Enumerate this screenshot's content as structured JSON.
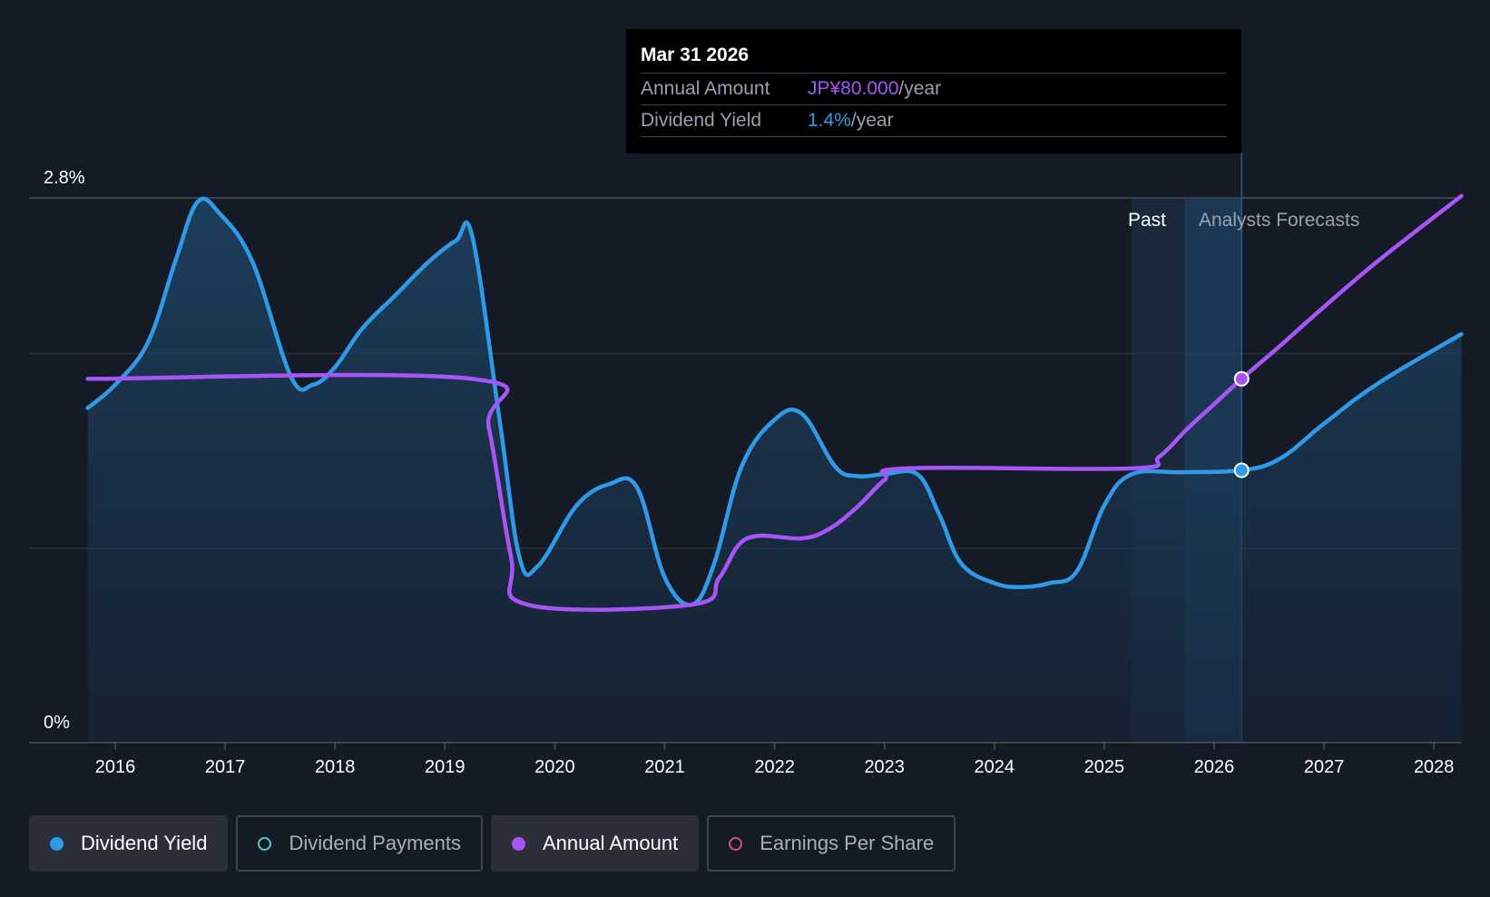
{
  "tooltip": {
    "date": "Mar 31 2026",
    "amount_label": "Annual Amount",
    "amount_value": "JP¥80.000",
    "amount_unit": "/year",
    "yield_label": "Dividend Yield",
    "yield_value": "1.4%",
    "yield_unit": "/year"
  },
  "regions": {
    "past": "Past",
    "forecast": "Analysts Forecasts"
  },
  "legend": [
    {
      "label": "Dividend Yield",
      "color": "#2f9be8",
      "active": true,
      "filled": true
    },
    {
      "label": "Dividend Payments",
      "color": "#5ec7c0",
      "active": false,
      "filled": false
    },
    {
      "label": "Annual Amount",
      "color": "#a855f7",
      "active": true,
      "filled": true
    },
    {
      "label": "Earnings Per Share",
      "color": "#d64d7f",
      "active": false,
      "filled": false
    }
  ],
  "chart_data": {
    "type": "line",
    "x_ticks": [
      "2016",
      "2017",
      "2018",
      "2019",
      "2020",
      "2021",
      "2022",
      "2023",
      "2024",
      "2025",
      "2026",
      "2027",
      "2028"
    ],
    "y_ticks": [
      "0%",
      "2.8%"
    ],
    "ylim": [
      0,
      2.8
    ],
    "xlim": [
      2015.75,
      2028.25
    ],
    "grid": true,
    "past_region": [
      2025.25,
      2026.25
    ],
    "highlight_x": 2026.25,
    "series": [
      {
        "name": "Dividend Yield",
        "color": "#2f9be8",
        "area": true,
        "points": [
          [
            2015.75,
            1.72
          ],
          [
            2016.0,
            1.84
          ],
          [
            2016.3,
            2.06
          ],
          [
            2016.55,
            2.48
          ],
          [
            2016.75,
            2.78
          ],
          [
            2016.95,
            2.72
          ],
          [
            2017.25,
            2.47
          ],
          [
            2017.6,
            1.88
          ],
          [
            2017.8,
            1.84
          ],
          [
            2018.0,
            1.93
          ],
          [
            2018.25,
            2.13
          ],
          [
            2018.55,
            2.3
          ],
          [
            2018.85,
            2.47
          ],
          [
            2019.1,
            2.58
          ],
          [
            2019.25,
            2.6
          ],
          [
            2019.5,
            1.65
          ],
          [
            2019.68,
            0.95
          ],
          [
            2019.85,
            0.91
          ],
          [
            2020.2,
            1.22
          ],
          [
            2020.5,
            1.33
          ],
          [
            2020.75,
            1.31
          ],
          [
            2021.0,
            0.85
          ],
          [
            2021.25,
            0.71
          ],
          [
            2021.45,
            0.92
          ],
          [
            2021.7,
            1.42
          ],
          [
            2022.0,
            1.66
          ],
          [
            2022.25,
            1.69
          ],
          [
            2022.55,
            1.42
          ],
          [
            2022.75,
            1.37
          ],
          [
            2023.0,
            1.38
          ],
          [
            2023.3,
            1.38
          ],
          [
            2023.5,
            1.17
          ],
          [
            2023.7,
            0.92
          ],
          [
            2024.0,
            0.82
          ],
          [
            2024.25,
            0.8
          ],
          [
            2024.5,
            0.82
          ],
          [
            2024.75,
            0.88
          ],
          [
            2025.0,
            1.22
          ],
          [
            2025.25,
            1.38
          ],
          [
            2025.7,
            1.39
          ],
          [
            2026.25,
            1.4
          ],
          [
            2026.6,
            1.46
          ],
          [
            2027.0,
            1.64
          ],
          [
            2027.5,
            1.85
          ],
          [
            2028.25,
            2.1
          ]
        ]
      },
      {
        "name": "Annual Amount",
        "color": "#a855f7",
        "area": false,
        "points": [
          [
            2015.75,
            1.87
          ],
          [
            2019.25,
            1.87
          ],
          [
            2019.4,
            1.62
          ],
          [
            2019.6,
            0.96
          ],
          [
            2019.75,
            0.71
          ],
          [
            2021.25,
            0.71
          ],
          [
            2021.5,
            0.85
          ],
          [
            2021.75,
            1.05
          ],
          [
            2022.25,
            1.05
          ],
          [
            2022.5,
            1.1
          ],
          [
            2022.75,
            1.21
          ],
          [
            2023.0,
            1.35
          ],
          [
            2023.2,
            1.41
          ],
          [
            2025.25,
            1.41
          ],
          [
            2025.5,
            1.47
          ],
          [
            2025.75,
            1.61
          ],
          [
            2026.0,
            1.74
          ],
          [
            2026.25,
            1.87
          ],
          [
            2026.6,
            2.04
          ],
          [
            2027.0,
            2.24
          ],
          [
            2027.5,
            2.48
          ],
          [
            2028.25,
            2.81
          ]
        ]
      }
    ],
    "highlight_points": [
      {
        "series": "Annual Amount",
        "x": 2026.25,
        "y": 1.87
      },
      {
        "series": "Dividend Yield",
        "x": 2026.25,
        "y": 1.4
      }
    ]
  }
}
